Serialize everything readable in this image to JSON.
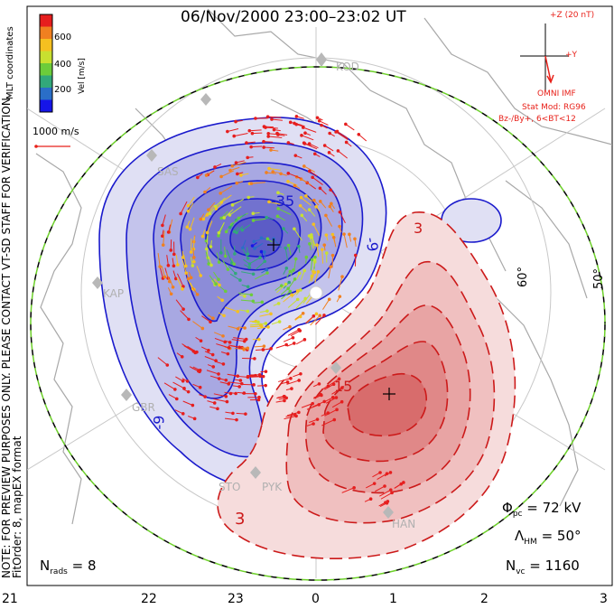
{
  "title": "06/Nov/2000 23:00–23:02 UT",
  "imf": {
    "z_label": "+Z (20 nT)",
    "y_label": "+Y",
    "source": "OMNI IMF"
  },
  "model": {
    "line1": "Stat Mod: RG96",
    "line2": "Bz-/By+, 6<BT<12"
  },
  "colorbar": {
    "ticks": [
      "600",
      "400",
      "200"
    ],
    "title": "Vel [m/s]",
    "unit_label": "MLT coordinates",
    "colors": [
      "#e61e1e",
      "#f08020",
      "#f5c020",
      "#c8e030",
      "#6ccc3a",
      "#32a87a",
      "#2a6ec8",
      "#1515e8"
    ]
  },
  "scale_vector": {
    "label": "1000 m/s"
  },
  "notes": {
    "preview": "NOTE: FOR PREVIEW PURPOSES ONLY. PLEASE CONTACT VT-SD STAFF FOR VERIFICATION.",
    "fit": "FitOrder: 8, mapEX format"
  },
  "stats": {
    "phi_pc": {
      "symbol": "Φ",
      "sub": "pc",
      "value": "= 72 kV"
    },
    "lambda_hm": {
      "symbol": "Λ",
      "sub": "HM",
      "value": "= 50°"
    },
    "n_vc": {
      "symbol": "N",
      "sub": "vc",
      "value": "= 1160"
    },
    "n_rads": {
      "symbol": "N",
      "sub": "rads",
      "value": "= 8"
    }
  },
  "mlt_ticks": [
    "21",
    "22",
    "23",
    "0",
    "1",
    "2",
    "3"
  ],
  "lat_labels": [
    "60°",
    "50°"
  ],
  "radars": [
    "KOD",
    "SAS",
    "KAP",
    "GBR",
    "STO",
    "PYK",
    "HAN"
  ],
  "contour_labels": [
    "-35",
    "-9",
    "-9",
    "3",
    "15",
    "3"
  ],
  "potential": {
    "negative_color": "#1a1acc",
    "positive_color": "#cc1a1a"
  }
}
